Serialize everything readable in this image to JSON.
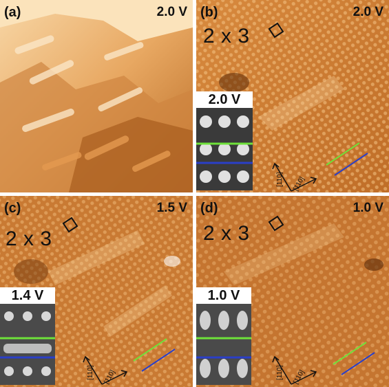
{
  "colors": {
    "stm_light": "#f4c58a",
    "stm_mid": "#d58a3c",
    "stm_dark": "#9a4e12",
    "green_line": "#6fe23a",
    "blue_line": "#2a3fc8",
    "inset_bg": "#3a3a3a"
  },
  "panels": [
    {
      "id": "a",
      "label": "(a)",
      "bias": "2.0 V"
    },
    {
      "id": "b",
      "label": "(b)",
      "bias": "2.0 V",
      "reconstruction": "2 x 3",
      "inset_bias": "2.0 V",
      "axis_x": "[110]",
      "axis_y": "[110]"
    },
    {
      "id": "c",
      "label": "(c)",
      "bias": "1.5 V",
      "reconstruction": "2 x 3",
      "inset_bias": "1.4 V",
      "axis_x": "[110]",
      "axis_y": "[110]"
    },
    {
      "id": "d",
      "label": "(d)",
      "bias": "1.0 V",
      "reconstruction": "2 x 3",
      "inset_bias": "1.0 V",
      "axis_x": "[110]",
      "axis_y": "[110]"
    }
  ]
}
